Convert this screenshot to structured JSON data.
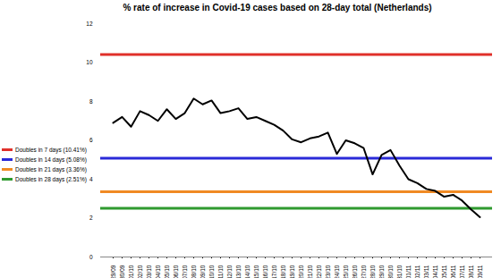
{
  "chart_data": {
    "type": "line",
    "title": "% rate of increase in Covid-19 cases based on 28-day total (Netherlands)",
    "x": [
      "29/09",
      "30/09",
      "01/10",
      "02/10",
      "03/10",
      "04/10",
      "05/10",
      "06/10",
      "07/10",
      "08/10",
      "09/10",
      "10/10",
      "11/10",
      "12/10",
      "13/10",
      "14/10",
      "15/10",
      "16/10",
      "17/10",
      "18/10",
      "19/10",
      "20/10",
      "21/10",
      "22/10",
      "23/10",
      "24/10",
      "25/10",
      "26/10",
      "27/10",
      "28/10",
      "29/10",
      "30/10",
      "31/10",
      "01/11",
      "02/11",
      "03/11",
      "04/11",
      "05/11",
      "06/11",
      "07/11",
      "08/11",
      "09/11"
    ],
    "values": [
      6.9,
      7.2,
      6.7,
      7.5,
      7.3,
      7.0,
      7.6,
      7.1,
      7.4,
      8.15,
      7.85,
      8.05,
      7.4,
      7.5,
      7.65,
      7.1,
      7.2,
      7.0,
      6.8,
      6.5,
      6.05,
      5.9,
      6.1,
      6.2,
      6.4,
      5.3,
      6.0,
      5.85,
      5.6,
      4.25,
      5.25,
      5.5,
      4.7,
      4.0,
      3.8,
      3.5,
      3.4,
      3.1,
      3.2,
      2.9,
      2.45,
      2.05
    ],
    "color": "#000000",
    "reference_lines": [
      {
        "name": "Doubles in 7 days (10.41%)",
        "value": 10.41,
        "color": "#e0302a"
      },
      {
        "name": "Doubles in 14 days (5.08%)",
        "value": 5.08,
        "color": "#2a2ad8"
      },
      {
        "name": "Doubles in 21 days (3.36%)",
        "value": 3.36,
        "color": "#f08a24"
      },
      {
        "name": "Doubles in 28 days (2.51%)",
        "value": 2.51,
        "color": "#2f9a2f"
      }
    ],
    "ylim": [
      0,
      12
    ],
    "yticks": [
      0,
      2,
      4,
      6,
      8,
      10,
      12
    ],
    "grid": false,
    "legend": "left"
  }
}
